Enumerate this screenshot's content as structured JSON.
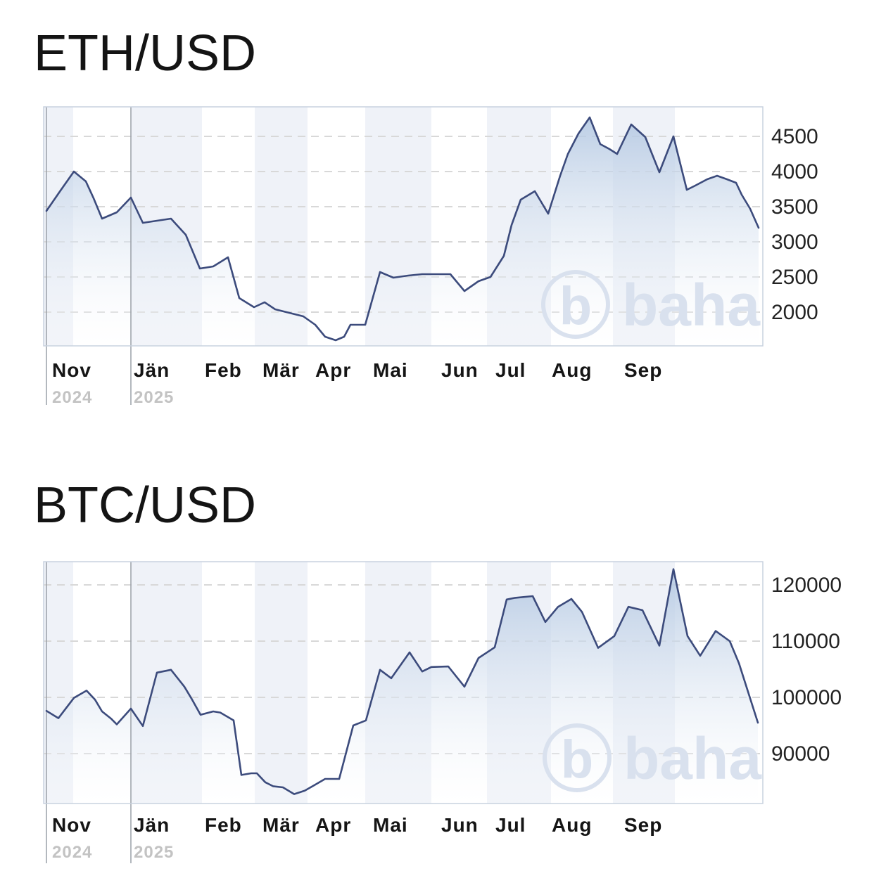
{
  "style": {
    "line_color": "#3c4b7c",
    "area_top_color": "#aec4e0",
    "area_bottom_color": "#ffffff",
    "band_color": "#eff2f8",
    "grid_color": "#d8d8d8",
    "border_color": "#c9d2df",
    "divider_color": "#9aa0a8",
    "tick_label_color": "#232323",
    "month_label_color": "#151515",
    "year_label_color": "#c3c3c3",
    "watermark_color": "#d9e1ee",
    "title_color": "#141414"
  },
  "watermark": {
    "letter": "b",
    "text": "baha"
  },
  "chart_data": [
    {
      "type": "area",
      "title": "ETH/USD",
      "legend": "none",
      "grid": "dashed-horizontal",
      "y_ticks": [
        4500,
        4000,
        3500,
        3000,
        2500,
        2000
      ],
      "y_axis_side": "right",
      "ylim": [
        1520,
        4930
      ],
      "months": [
        "Nov",
        "Jän",
        "Feb",
        "Mär",
        "Apr",
        "Mai",
        "Jun",
        "Jul",
        "Aug",
        "Sep"
      ],
      "years": [
        {
          "label": "2024",
          "month_index": 0
        },
        {
          "label": "2025",
          "month_index": 1
        }
      ],
      "points": [
        [
          66,
          3440
        ],
        [
          86,
          3730
        ],
        [
          105,
          4000
        ],
        [
          122,
          3860
        ],
        [
          133,
          3620
        ],
        [
          145,
          3330
        ],
        [
          166,
          3420
        ],
        [
          186,
          3630
        ],
        [
          203,
          3270
        ],
        [
          223,
          3300
        ],
        [
          243,
          3330
        ],
        [
          264,
          3100
        ],
        [
          284,
          2620
        ],
        [
          303,
          2650
        ],
        [
          324,
          2780
        ],
        [
          340,
          2200
        ],
        [
          361,
          2070
        ],
        [
          376,
          2140
        ],
        [
          391,
          2040
        ],
        [
          411,
          1990
        ],
        [
          431,
          1940
        ],
        [
          448,
          1820
        ],
        [
          462,
          1650
        ],
        [
          477,
          1600
        ],
        [
          489,
          1650
        ],
        [
          498,
          1820
        ],
        [
          519,
          1820
        ],
        [
          540,
          2570
        ],
        [
          559,
          2490
        ],
        [
          580,
          2520
        ],
        [
          600,
          2540
        ],
        [
          620,
          2540
        ],
        [
          640,
          2540
        ],
        [
          660,
          2300
        ],
        [
          680,
          2440
        ],
        [
          697,
          2500
        ],
        [
          716,
          2800
        ],
        [
          727,
          3240
        ],
        [
          740,
          3600
        ],
        [
          760,
          3720
        ],
        [
          779,
          3400
        ],
        [
          796,
          3940
        ],
        [
          807,
          4250
        ],
        [
          822,
          4540
        ],
        [
          838,
          4770
        ],
        [
          853,
          4390
        ],
        [
          866,
          4320
        ],
        [
          877,
          4250
        ],
        [
          897,
          4670
        ],
        [
          917,
          4490
        ],
        [
          937,
          3990
        ],
        [
          957,
          4500
        ],
        [
          976,
          3740
        ],
        [
          988,
          3800
        ],
        [
          1005,
          3890
        ],
        [
          1019,
          3940
        ],
        [
          1033,
          3890
        ],
        [
          1046,
          3840
        ],
        [
          1054,
          3670
        ],
        [
          1066,
          3470
        ],
        [
          1078,
          3200
        ]
      ]
    },
    {
      "type": "area",
      "title": "BTC/USD",
      "legend": "none",
      "grid": "dashed-horizontal",
      "y_ticks": [
        120000,
        110000,
        100000,
        90000
      ],
      "y_axis_side": "right",
      "ylim": [
        81000,
        124100
      ],
      "months": [
        "Nov",
        "Jän",
        "Feb",
        "Mär",
        "Apr",
        "Mai",
        "Jun",
        "Jul",
        "Aug",
        "Sep"
      ],
      "years": [
        {
          "label": "2024",
          "month_index": 0
        },
        {
          "label": "2025",
          "month_index": 1
        }
      ],
      "points": [
        [
          66,
          97600
        ],
        [
          83,
          96300
        ],
        [
          105,
          99900
        ],
        [
          123,
          101200
        ],
        [
          135,
          99600
        ],
        [
          145,
          97500
        ],
        [
          158,
          96200
        ],
        [
          166,
          95200
        ],
        [
          186,
          98000
        ],
        [
          203,
          94900
        ],
        [
          223,
          104400
        ],
        [
          243,
          104900
        ],
        [
          262,
          101900
        ],
        [
          273,
          99600
        ],
        [
          285,
          96900
        ],
        [
          303,
          97500
        ],
        [
          313,
          97300
        ],
        [
          332,
          95900
        ],
        [
          343,
          86200
        ],
        [
          357,
          86500
        ],
        [
          365,
          86500
        ],
        [
          377,
          84900
        ],
        [
          388,
          84200
        ],
        [
          402,
          84000
        ],
        [
          418,
          82800
        ],
        [
          433,
          83400
        ],
        [
          447,
          84400
        ],
        [
          462,
          85500
        ],
        [
          482,
          85500
        ],
        [
          502,
          95000
        ],
        [
          520,
          95900
        ],
        [
          540,
          104900
        ],
        [
          556,
          103400
        ],
        [
          582,
          108000
        ],
        [
          600,
          104600
        ],
        [
          613,
          105400
        ],
        [
          637,
          105500
        ],
        [
          660,
          101900
        ],
        [
          680,
          107000
        ],
        [
          697,
          108400
        ],
        [
          703,
          108900
        ],
        [
          720,
          117400
        ],
        [
          732,
          117700
        ],
        [
          757,
          118000
        ],
        [
          775,
          113400
        ],
        [
          793,
          116100
        ],
        [
          812,
          117500
        ],
        [
          827,
          115200
        ],
        [
          850,
          108800
        ],
        [
          873,
          110900
        ],
        [
          893,
          116100
        ],
        [
          913,
          115500
        ],
        [
          937,
          109200
        ],
        [
          957,
          122800
        ],
        [
          977,
          110900
        ],
        [
          995,
          107400
        ],
        [
          1017,
          111800
        ],
        [
          1037,
          110000
        ],
        [
          1050,
          106100
        ],
        [
          1077,
          95500
        ]
      ]
    }
  ]
}
